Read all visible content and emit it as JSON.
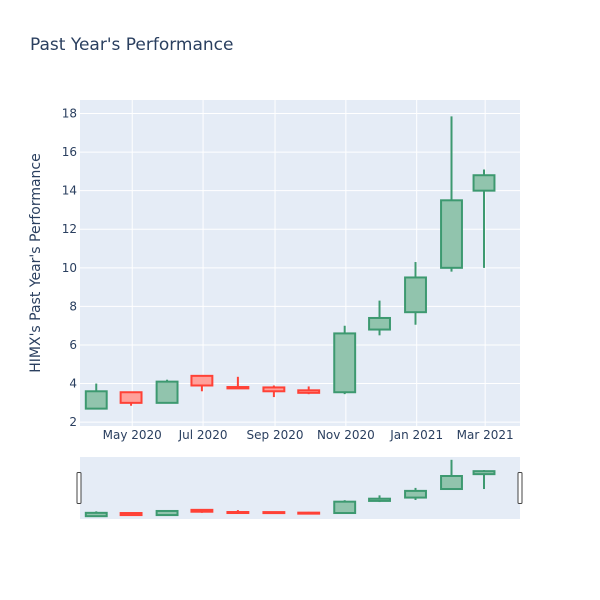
{
  "chart_data": {
    "type": "candlestick",
    "title": "Past Year's Performance",
    "xlabel": "",
    "ylabel": "HIMX's Past Year's Performance",
    "ylim": [
      1.8,
      18.7
    ],
    "ytick_values": [
      2,
      4,
      6,
      8,
      10,
      12,
      14,
      16,
      18
    ],
    "ytick_labels": [
      "2",
      "4",
      "6",
      "8",
      "10",
      "12",
      "14",
      "16",
      "18"
    ],
    "xtick_dates": [
      "2020-05-01",
      "2020-07-01",
      "2020-09-01",
      "2020-11-01",
      "2021-01-01",
      "2021-03-01"
    ],
    "xtick_labels": [
      "May 2020",
      "Jul 2020",
      "Sep 2020",
      "Nov 2020",
      "Jan 2021",
      "Mar 2021"
    ],
    "x_range": [
      "2020-03-17",
      "2021-03-31"
    ],
    "rangeslider": true,
    "grid": true,
    "colors": {
      "increasing": "#3d9970",
      "decreasing": "#ff4136",
      "increasing_fill": "#91c4ad",
      "decreasing_fill": "#ffa09a",
      "plot_bg": "#e5ecf6",
      "grid": "#ffffff",
      "text": "#2a3f5f"
    },
    "candles": [
      {
        "date": "2020-03-31",
        "open": 2.7,
        "high": 4.0,
        "low": 2.7,
        "close": 3.6
      },
      {
        "date": "2020-04-30",
        "open": 3.55,
        "high": 3.55,
        "low": 2.85,
        "close": 3.0
      },
      {
        "date": "2020-05-31",
        "open": 3.0,
        "high": 4.2,
        "low": 3.0,
        "close": 4.1
      },
      {
        "date": "2020-06-30",
        "open": 4.4,
        "high": 4.4,
        "low": 3.6,
        "close": 3.9
      },
      {
        "date": "2020-07-31",
        "open": 3.82,
        "high": 4.35,
        "low": 3.72,
        "close": 3.75
      },
      {
        "date": "2020-08-31",
        "open": 3.8,
        "high": 3.9,
        "low": 3.3,
        "close": 3.6
      },
      {
        "date": "2020-09-30",
        "open": 3.65,
        "high": 3.85,
        "low": 3.45,
        "close": 3.52
      },
      {
        "date": "2020-10-31",
        "open": 3.55,
        "high": 7.0,
        "low": 3.45,
        "close": 6.6
      },
      {
        "date": "2020-11-30",
        "open": 6.8,
        "high": 8.3,
        "low": 6.5,
        "close": 7.4
      },
      {
        "date": "2020-12-31",
        "open": 7.7,
        "high": 10.3,
        "low": 7.05,
        "close": 9.5
      },
      {
        "date": "2021-01-31",
        "open": 10.0,
        "high": 17.85,
        "low": 9.8,
        "close": 13.5
      },
      {
        "date": "2021-02-28",
        "open": 14.0,
        "high": 15.1,
        "low": 10.0,
        "close": 14.8
      }
    ]
  }
}
